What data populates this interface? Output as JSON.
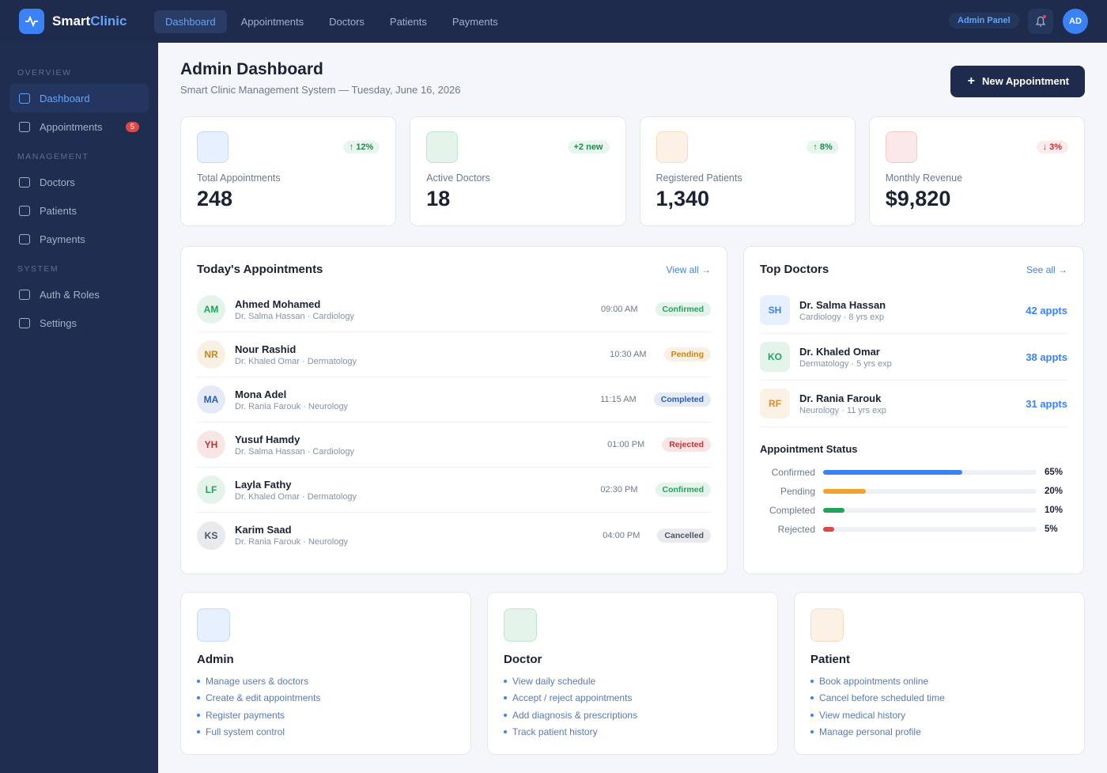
{
  "brand": {
    "first": "Smart",
    "second": "Clinic"
  },
  "nav": [
    "Dashboard",
    "Appointments",
    "Doctors",
    "Patients",
    "Payments"
  ],
  "topbar": {
    "panel": "Admin Panel",
    "avatar": "AD"
  },
  "sidebar": [
    {
      "title": "OVERVIEW",
      "items": [
        {
          "label": "Dashboard"
        },
        {
          "label": "Appointments",
          "badge": 5
        }
      ]
    },
    {
      "title": "MANAGEMENT",
      "items": [
        {
          "label": "Doctors"
        },
        {
          "label": "Patients"
        },
        {
          "label": "Payments"
        }
      ]
    },
    {
      "title": "SYSTEM",
      "items": [
        {
          "label": "Auth & Roles"
        },
        {
          "label": "Settings"
        }
      ]
    }
  ],
  "header": {
    "title": "Admin Dashboard",
    "subtitle": "Smart Clinic Management System — Tuesday, June 16, 2026",
    "button": "New Appointment"
  },
  "stats": [
    {
      "label": "Total Appointments",
      "value": "248",
      "change": "↑ 12%",
      "color": "#3b82f6"
    },
    {
      "label": "Active Doctors",
      "value": "18",
      "change": "+2 new",
      "color": "#22a35a"
    },
    {
      "label": "Registered Patients",
      "value": "1,340",
      "change": "↑ 8%",
      "color": "#e08a2c"
    },
    {
      "label": "Monthly Revenue",
      "value": "$9,820",
      "change": "↓ 3%",
      "color": "#e04848"
    }
  ],
  "appointments": {
    "title": "Today's Appointments",
    "link": "View all →",
    "rows": [
      {
        "initials": "AM",
        "patient": "Ahmed Mohamed",
        "detail": "Dr. Salma Hassan · Cardiology",
        "time": "09:00 AM",
        "status": "Confirmed",
        "color": "#22a35a"
      },
      {
        "initials": "NR",
        "patient": "Nour Rashid",
        "detail": "Dr. Khaled Omar · Dermatology",
        "time": "10:30 AM",
        "status": "Pending",
        "color": "#c7861b"
      },
      {
        "initials": "MA",
        "patient": "Mona Adel",
        "detail": "Dr. Rania Farouk · Neurology",
        "time": "11:15 AM",
        "status": "Completed",
        "color": "#2b5cb8"
      },
      {
        "initials": "YH",
        "patient": "Yusuf Hamdy",
        "detail": "Dr. Salma Hassan · Cardiology",
        "time": "01:00 PM",
        "status": "Rejected",
        "color": "#c53030"
      },
      {
        "initials": "LF",
        "patient": "Layla Fathy",
        "detail": "Dr. Khaled Omar · Dermatology",
        "time": "02:30 PM",
        "status": "Confirmed",
        "color": "#22a35a"
      },
      {
        "initials": "KS",
        "patient": "Karim Saad",
        "detail": "Dr. Rania Farouk · Neurology",
        "time": "04:00 PM",
        "status": "Cancelled",
        "color": "#4a5568"
      }
    ]
  },
  "doctors": {
    "title": "Top Doctors",
    "link": "See all →",
    "rows": [
      {
        "initials": "SH",
        "name": "Dr. Salma Hassan",
        "meta": "Cardiology · 8 yrs exp",
        "appts": "42 appts",
        "color": "#3b82f6"
      },
      {
        "initials": "KO",
        "name": "Dr. Khaled Omar",
        "meta": "Dermatology · 5 yrs exp",
        "appts": "38 appts",
        "color": "#22a35a"
      },
      {
        "initials": "RF",
        "name": "Dr. Rania Farouk",
        "meta": "Neurology · 11 yrs exp",
        "appts": "31 appts",
        "color": "#e08a2c"
      }
    ]
  },
  "status": {
    "title": "Appointment Status",
    "items": [
      {
        "name": "Confirmed",
        "value": 65,
        "label": "65%",
        "color": "#3b82f6"
      },
      {
        "name": "Pending",
        "value": 20,
        "label": "20%",
        "color": "#f0a429"
      },
      {
        "name": "Completed",
        "value": 10,
        "label": "10%",
        "color": "#22a35a"
      },
      {
        "name": "Rejected",
        "value": 5,
        "label": "5%",
        "color": "#e04848"
      }
    ]
  },
  "roles": [
    {
      "title": "Admin",
      "color": "#3b82f6",
      "items": [
        "Manage users & doctors",
        "Create & edit appointments",
        "Register payments",
        "Full system control"
      ]
    },
    {
      "title": "Doctor",
      "color": "#22a35a",
      "items": [
        "View daily schedule",
        "Accept / reject appointments",
        "Add diagnosis & prescriptions",
        "Track patient history"
      ]
    },
    {
      "title": "Patient",
      "color": "#e08a2c",
      "items": [
        "Book appointments online",
        "Cancel before scheduled time",
        "View medical history",
        "Manage personal profile"
      ]
    }
  ]
}
